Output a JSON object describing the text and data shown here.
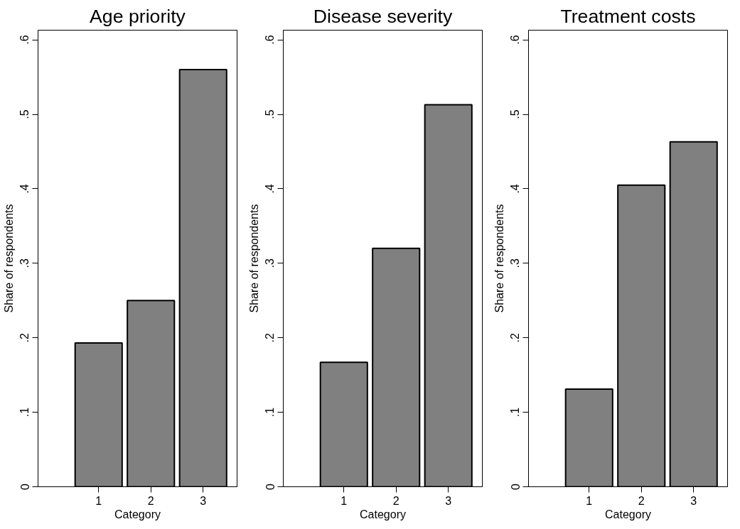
{
  "chart_data": [
    {
      "type": "bar",
      "title": "Age priority",
      "xlabel": "Category",
      "ylabel": "Share of respondents",
      "x": [
        1,
        2,
        3
      ],
      "values": [
        0.193,
        0.25,
        0.56
      ],
      "color": "#808080",
      "xlim": [
        -0.16,
        3.65
      ],
      "xticks": [
        1,
        2,
        3
      ],
      "ylim": [
        0,
        0.613
      ],
      "yticks": [
        0,
        {
          "value": 0.1,
          "label": ".1"
        },
        {
          "value": 0.2,
          "label": ".2"
        },
        {
          "value": 0.3,
          "label": ".3"
        },
        {
          "value": 0.4,
          "label": ".4"
        },
        {
          "value": 0.5,
          "label": ".5"
        },
        {
          "value": 0.6,
          "label": ".6"
        }
      ],
      "grid": false
    },
    {
      "type": "bar",
      "title": "Disease severity",
      "xlabel": "Category",
      "ylabel": "Share of respondents",
      "x": [
        1,
        2,
        3
      ],
      "values": [
        0.167,
        0.32,
        0.513
      ],
      "color": "#808080",
      "xlim": [
        -0.16,
        3.65
      ],
      "xticks": [
        1,
        2,
        3
      ],
      "ylim": [
        0,
        0.613
      ],
      "yticks": [
        0,
        {
          "value": 0.1,
          "label": ".1"
        },
        {
          "value": 0.2,
          "label": ".2"
        },
        {
          "value": 0.3,
          "label": ".3"
        },
        {
          "value": 0.4,
          "label": ".4"
        },
        {
          "value": 0.5,
          "label": ".5"
        },
        {
          "value": 0.6,
          "label": ".6"
        }
      ],
      "grid": false
    },
    {
      "type": "bar",
      "title": "Treatment costs",
      "xlabel": "Category",
      "ylabel": "Share of respondents",
      "x": [
        1,
        2,
        3
      ],
      "values": [
        0.131,
        0.405,
        0.463
      ],
      "color": "#808080",
      "xlim": [
        -0.16,
        3.65
      ],
      "xticks": [
        1,
        2,
        3
      ],
      "ylim": [
        0,
        0.613
      ],
      "yticks": [
        0,
        {
          "value": 0.1,
          "label": ".1"
        },
        {
          "value": 0.2,
          "label": ".2"
        },
        {
          "value": 0.3,
          "label": ".3"
        },
        {
          "value": 0.4,
          "label": ".4"
        },
        {
          "value": 0.5,
          "label": ".5"
        },
        {
          "value": 0.6,
          "label": ".6"
        }
      ],
      "grid": false
    }
  ]
}
